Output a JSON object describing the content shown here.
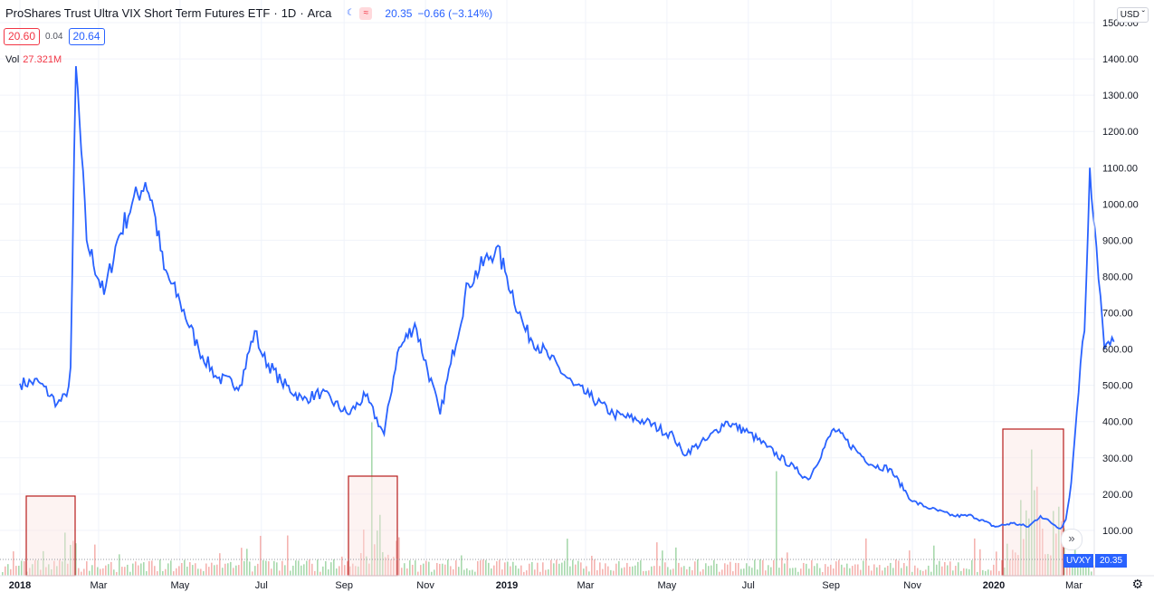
{
  "legend": {
    "title": "ProShares Trust Ultra VIX Short Term Futures ETF",
    "interval": "1D",
    "exchange": "Arca",
    "price": "20.35",
    "change": "−0.66 (−3.14%)",
    "bid": "20.60",
    "spread": "0.04",
    "ask": "20.64",
    "vol_label": "Vol",
    "vol_value": "27.321M",
    "separator": "·"
  },
  "currency": "USD",
  "price_tag": {
    "symbol": "UVXY",
    "value": "20.35"
  },
  "colors": {
    "line": "#2962ff",
    "vol_up": "#26a69a",
    "vol_down": "#ef5350",
    "highlight_border": "#b71c1c",
    "highlight_fill": "#fbe4e2"
  },
  "icons": [
    "moon-icon",
    "wave-icon",
    "chevron-down-icon",
    "double-chevron-right-icon",
    "gear-icon"
  ],
  "chart_data": {
    "type": "line",
    "series": [
      {
        "x": [
          "2018-01-01",
          "2018-01-15",
          "2018-01-29",
          "2018-02-05",
          "2018-02-08",
          "2018-02-12",
          "2018-02-20",
          "2018-03-05",
          "2018-03-15",
          "2018-03-26",
          "2018-04-05",
          "2018-04-10",
          "2018-04-19",
          "2018-05-01",
          "2018-05-15",
          "2018-05-29",
          "2018-06-15",
          "2018-06-26",
          "2018-07-02",
          "2018-07-16",
          "2018-08-01",
          "2018-08-15",
          "2018-09-04",
          "2018-09-17",
          "2018-10-01",
          "2018-10-11",
          "2018-10-24",
          "2018-11-12",
          "2018-11-20",
          "2018-12-03",
          "2018-12-24",
          "2019-01-01",
          "2019-01-15",
          "2019-02-01",
          "2019-02-20",
          "2019-03-04",
          "2019-03-22",
          "2019-04-15",
          "2019-05-06",
          "2019-05-13",
          "2019-05-31",
          "2019-06-14",
          "2019-07-01",
          "2019-07-15",
          "2019-08-05",
          "2019-08-15",
          "2019-09-03",
          "2019-09-20",
          "2019-10-02",
          "2019-10-15",
          "2019-11-01",
          "2019-11-15",
          "2019-12-02",
          "2019-12-16",
          "2020-01-02",
          "2020-01-15",
          "2020-01-27",
          "2020-02-05",
          "2020-02-20",
          "2020-02-24",
          "2020-02-28",
          "2020-03-06",
          "2020-03-09",
          "2020-03-13",
          "2020-03-18",
          "2020-03-24",
          "2020-03-31"
        ],
        "values": [
          505,
          510,
          450,
          470,
          550,
          1380,
          900,
          750,
          900,
          1000,
          1060,
          1010,
          820,
          730,
          600,
          520,
          500,
          650,
          580,
          510,
          460,
          480,
          420,
          470,
          365,
          590,
          670,
          420,
          560,
          780,
          880,
          800,
          650,
          580,
          500,
          470,
          420,
          400,
          360,
          310,
          350,
          400,
          370,
          330,
          270,
          240,
          380,
          320,
          280,
          270,
          180,
          160,
          140,
          140,
          110,
          120,
          110,
          140,
          105,
          130,
          230,
          560,
          650,
          1100,
          880,
          600,
          620
        ]
      }
    ],
    "yticks": [
      "100.00",
      "200.00",
      "300.00",
      "400.00",
      "500.00",
      "600.00",
      "700.00",
      "800.00",
      "900.00",
      "1000.00",
      "1100.00",
      "1200.00",
      "1300.00",
      "1400.00",
      "1500.00"
    ],
    "xticks": [
      "2018",
      "Mar",
      "May",
      "Jul",
      "Sep",
      "Nov",
      "2019",
      "Mar",
      "May",
      "Jul",
      "Sep",
      "Nov",
      "2020",
      "Mar"
    ],
    "ylim": [
      0,
      1500
    ]
  }
}
